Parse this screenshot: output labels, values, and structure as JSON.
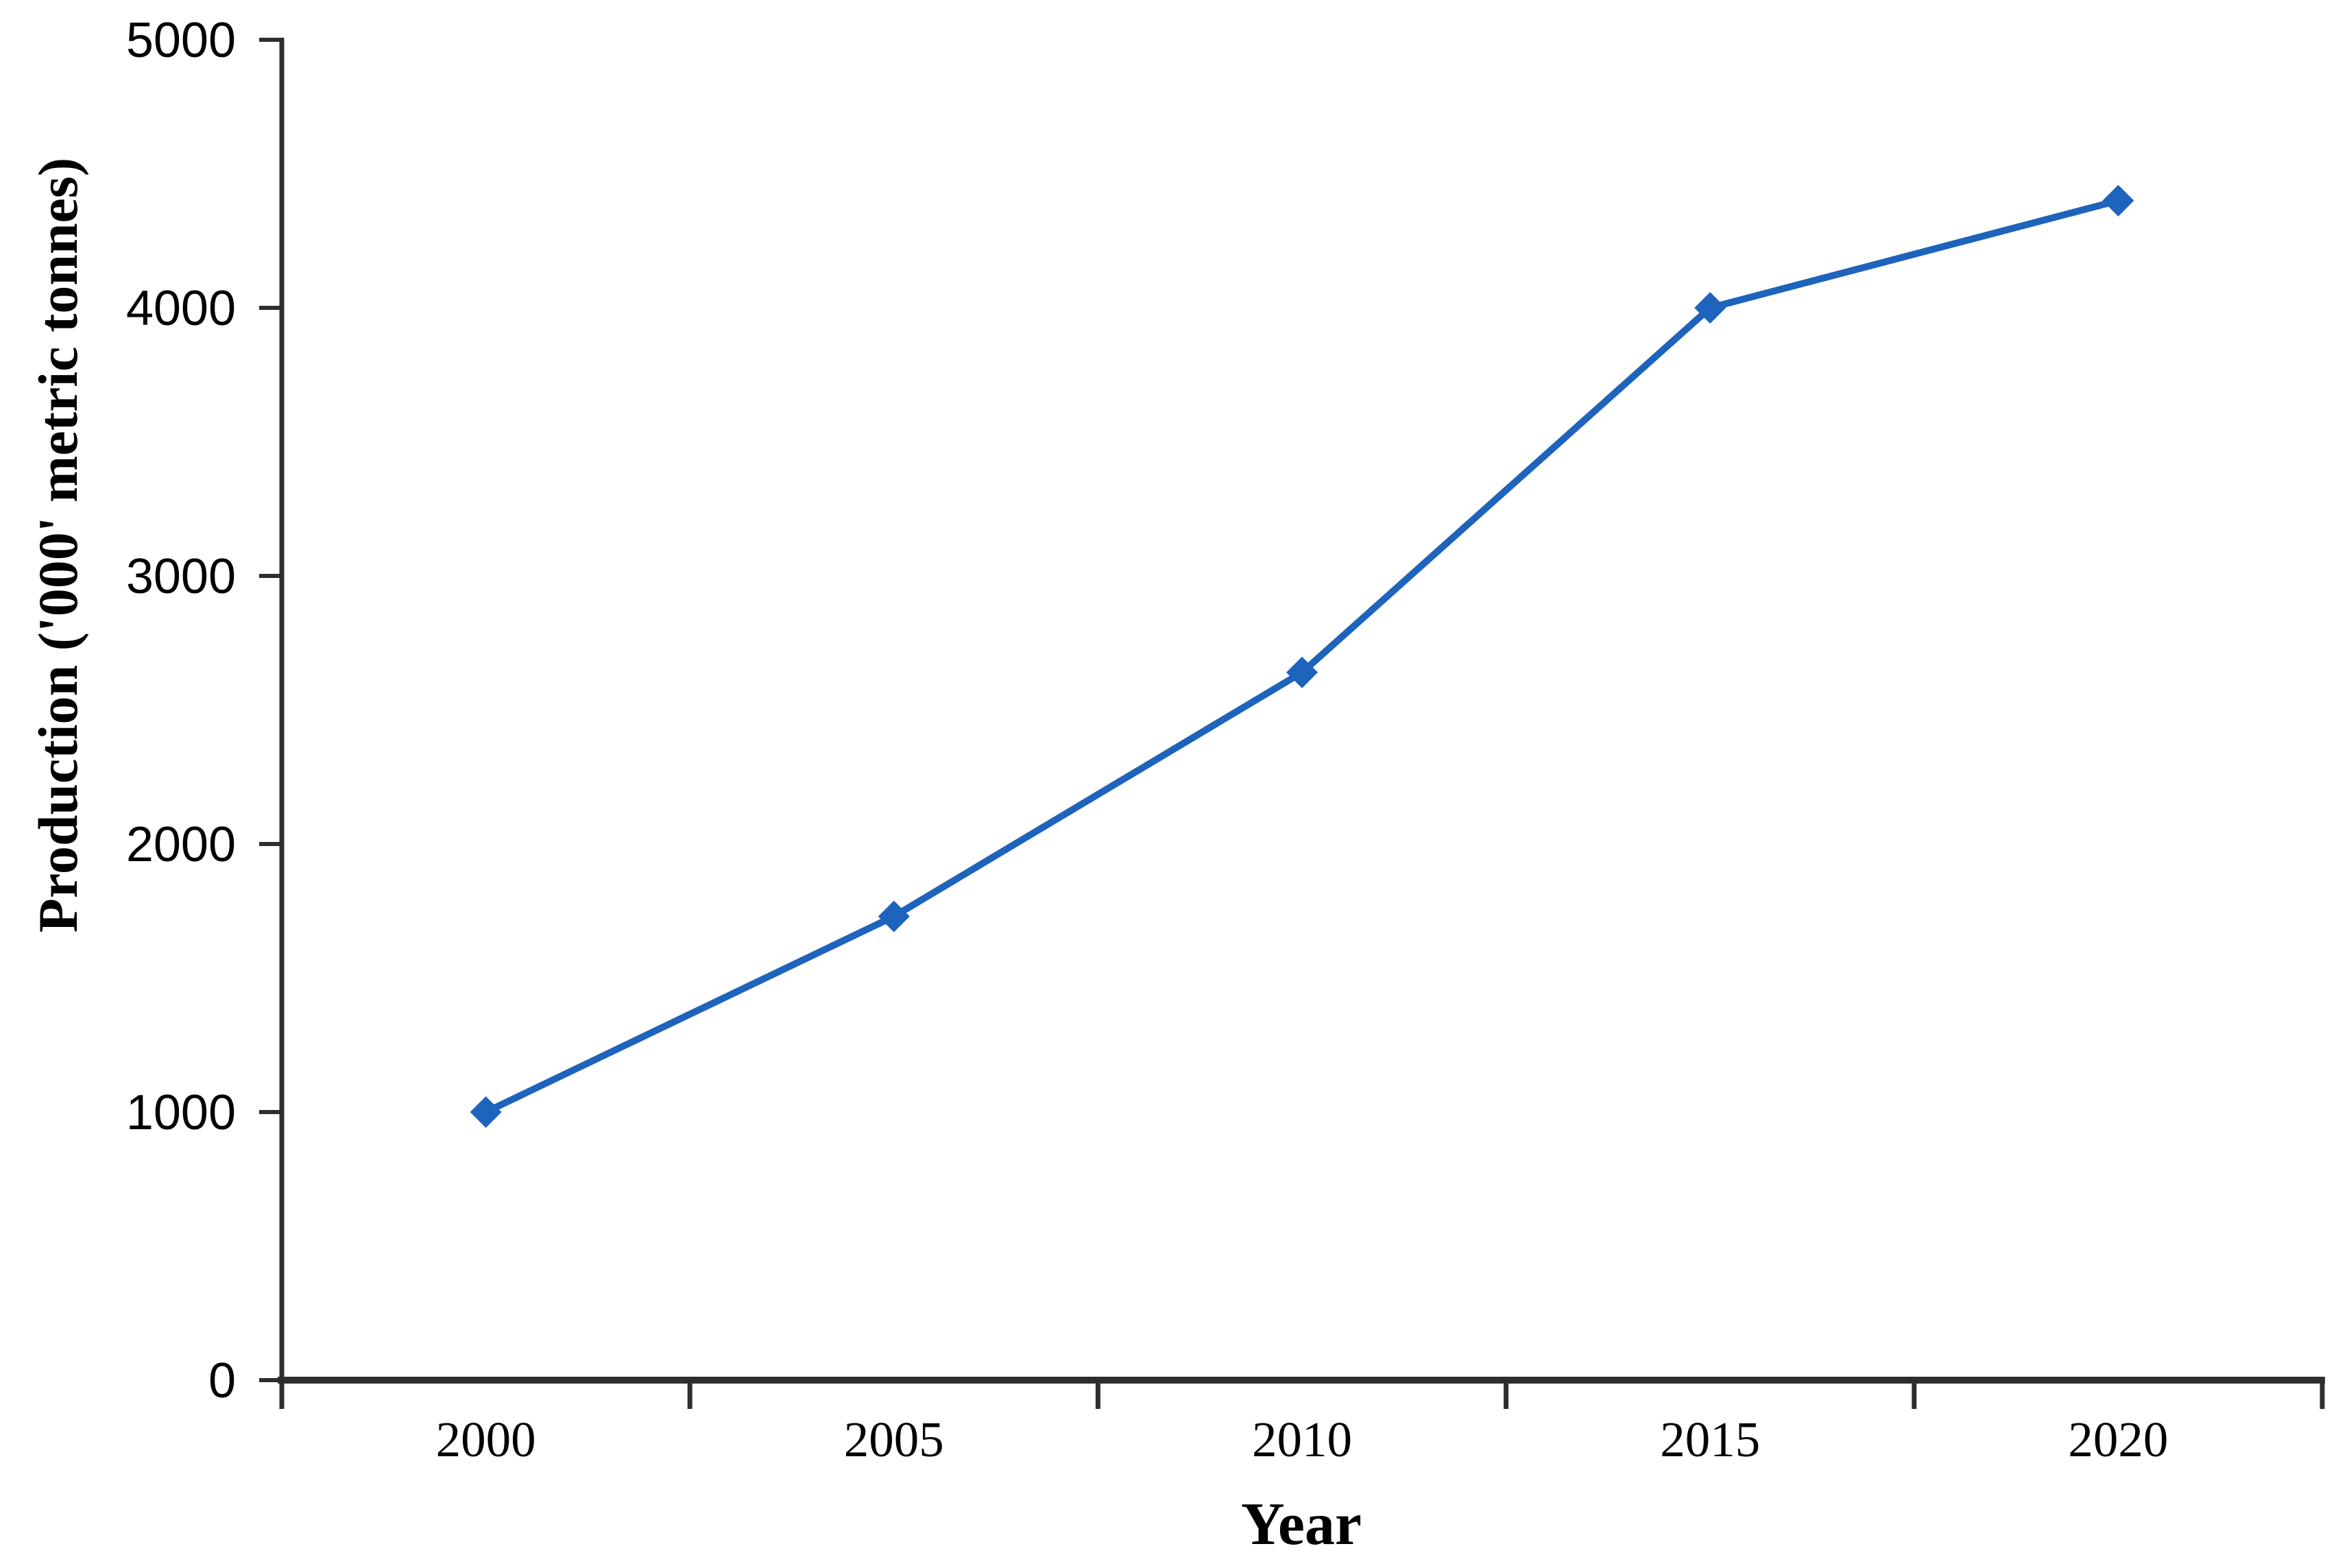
{
  "chart_data": {
    "type": "line",
    "title": "",
    "xlabel": "Year",
    "ylabel": "Production ('000' metric tonnes)",
    "categories": [
      "2000",
      "2005",
      "2010",
      "2015",
      "2020"
    ],
    "series": [
      {
        "name": "Production",
        "values": [
          1000,
          1730,
          2640,
          4000,
          4400
        ]
      }
    ],
    "ylim": [
      0,
      5000
    ],
    "yticks": [
      0,
      1000,
      2000,
      3000,
      4000,
      5000
    ],
    "grid": false,
    "legend_position": "none",
    "marker_shape": "diamond",
    "line_color": "#1E63BC",
    "marker_color": "#1E63BC",
    "axis_color": "#2E2E2E",
    "text_color": "#000000",
    "background_color": "#FFFFFF"
  }
}
